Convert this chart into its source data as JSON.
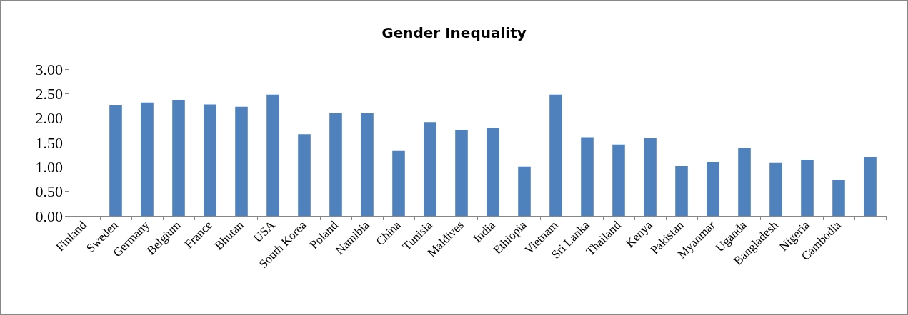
{
  "chart_data": {
    "type": "bar",
    "title": "Gender Inequality",
    "categories": [
      "Finland",
      "Sweden",
      "Germany",
      "Belgium",
      "France",
      "Bhutan",
      "USA",
      "South Korea",
      "Poland",
      "Namibia",
      "China",
      "Tunisia",
      "Maldives",
      "India",
      "Ethiopia",
      "Vietnam",
      "Sri Lanka",
      "Thailand",
      "Kenya",
      "Pakistan",
      "Myanmar",
      "Uganda",
      "Bangladesh",
      "Nigeria",
      "Cambodia",
      null
    ],
    "values": [
      0,
      2.26,
      2.32,
      2.37,
      2.28,
      2.23,
      2.48,
      1.67,
      2.1,
      2.1,
      1.33,
      1.92,
      1.76,
      1.8,
      1.01,
      2.48,
      1.61,
      1.46,
      1.59,
      1.02,
      1.1,
      1.39,
      1.08,
      1.15,
      0.74,
      1.21
    ],
    "color": "#4f81bd",
    "ylim": [
      0,
      3
    ],
    "yticks": [
      {
        "value": 0,
        "label": "0.00"
      },
      {
        "value": 0.5,
        "label": "0.50"
      },
      {
        "value": 1,
        "label": "1.00"
      },
      {
        "value": 1.5,
        "label": "1.50"
      },
      {
        "value": 2,
        "label": "2.00"
      },
      {
        "value": 2.5,
        "label": "2.50"
      },
      {
        "value": 3,
        "label": "3.00"
      }
    ],
    "grid": false
  }
}
